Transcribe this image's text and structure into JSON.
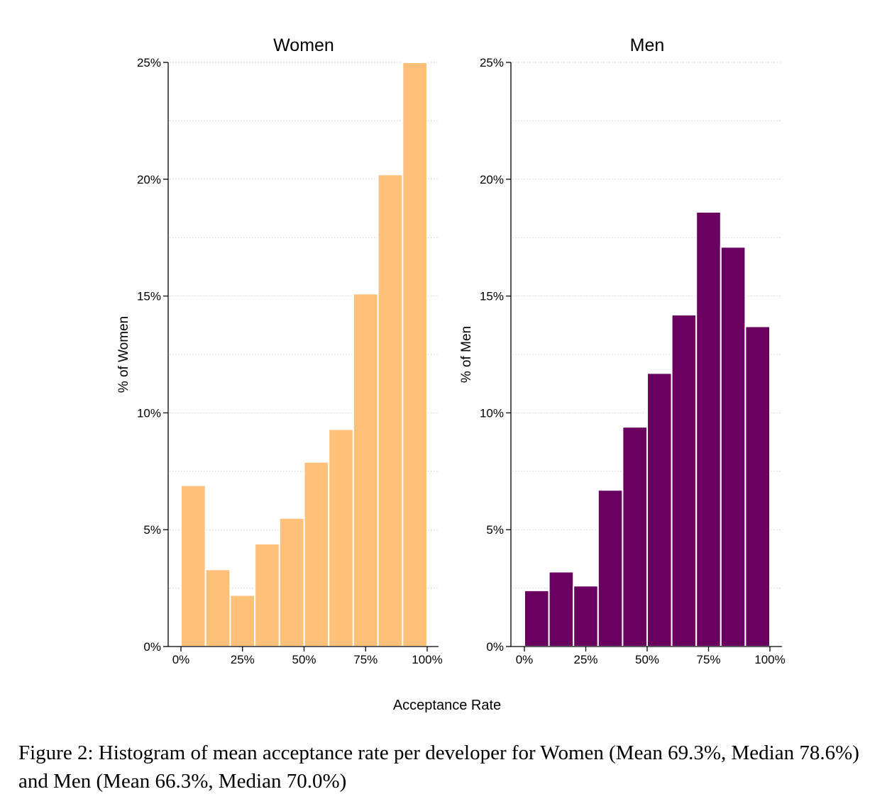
{
  "figure": {
    "shared_xlabel": "Acceptance Rate",
    "caption": "Figure 2: Histogram of mean acceptance rate per developer for Women (Mean 69.3%, Median 78.6%) and Men (Mean 66.3%, Median 70.0%)"
  },
  "chart_data": [
    {
      "type": "bar",
      "title": "Women",
      "ylabel": "% of Women",
      "xlabel": "Acceptance Rate",
      "color": "#FFC17A",
      "bin_edges": [
        0,
        10,
        20,
        30,
        40,
        50,
        60,
        70,
        80,
        90,
        100
      ],
      "values": [
        6.9,
        3.3,
        2.2,
        4.4,
        5.5,
        7.9,
        9.3,
        15.1,
        20.2,
        25.0
      ],
      "xlim": [
        0,
        100
      ],
      "ylim": [
        0,
        25
      ],
      "xticks": [
        0,
        25,
        50,
        75,
        100
      ],
      "xtick_labels": [
        "0%",
        "25%",
        "50%",
        "75%",
        "100%"
      ],
      "yticks": [
        0,
        5,
        10,
        15,
        20,
        25
      ],
      "ytick_labels": [
        "0%",
        "5%",
        "10%",
        "15%",
        "20%",
        "25%"
      ],
      "grid": true
    },
    {
      "type": "bar",
      "title": "Men",
      "ylabel": "% of Men",
      "xlabel": "Acceptance Rate",
      "color": "#690060",
      "bin_edges": [
        0,
        10,
        20,
        30,
        40,
        50,
        60,
        70,
        80,
        90,
        100
      ],
      "values": [
        2.4,
        3.2,
        2.6,
        6.7,
        9.4,
        11.7,
        14.2,
        18.6,
        17.1,
        13.7
      ],
      "xlim": [
        0,
        100
      ],
      "ylim": [
        0,
        25
      ],
      "xticks": [
        0,
        25,
        50,
        75,
        100
      ],
      "xtick_labels": [
        "0%",
        "25%",
        "50%",
        "75%",
        "100%"
      ],
      "yticks": [
        0,
        5,
        10,
        15,
        20,
        25
      ],
      "ytick_labels": [
        "0%",
        "5%",
        "10%",
        "15%",
        "20%",
        "25%"
      ],
      "grid": true
    }
  ]
}
